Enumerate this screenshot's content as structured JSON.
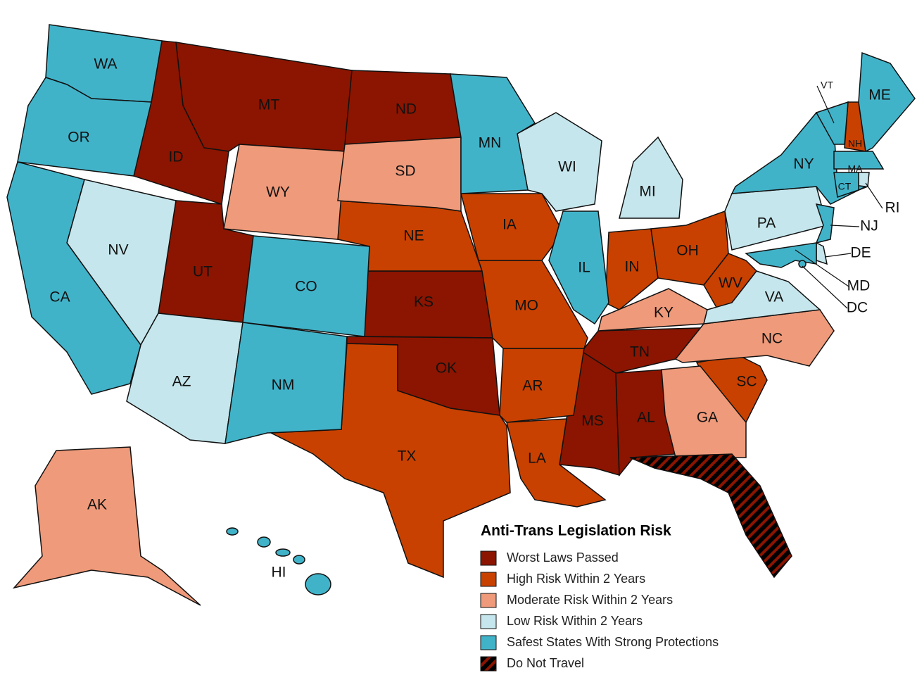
{
  "legend": {
    "title": "Anti-Trans Legislation Risk",
    "items": [
      {
        "label": "Worst Laws Passed",
        "color": "#8b1500",
        "states": [
          "MT",
          "ND",
          "ID",
          "UT",
          "KS",
          "OK",
          "TN",
          "MS",
          "AL"
        ]
      },
      {
        "label": "High Risk Within 2 Years",
        "color": "#c84100",
        "states": [
          "NE",
          "IA",
          "MO",
          "AR",
          "TX",
          "LA",
          "IN",
          "OH",
          "WV",
          "SC",
          "NH"
        ]
      },
      {
        "label": "Moderate Risk Within 2 Years",
        "color": "#ef9a7a",
        "states": [
          "WY",
          "SD",
          "KY",
          "NC",
          "GA",
          "AK"
        ]
      },
      {
        "label": "Low Risk Within 2 Years",
        "color": "#c5e6ec",
        "states": [
          "NV",
          "AZ",
          "WI",
          "MI",
          "PA",
          "VA",
          "DE",
          "RI"
        ]
      },
      {
        "label": "Safest States With Strong Protections",
        "color": "#41b3c9",
        "states": [
          "WA",
          "OR",
          "CA",
          "CO",
          "NM",
          "MN",
          "IL",
          "NY",
          "VT",
          "ME",
          "MA",
          "CT",
          "NJ",
          "MD",
          "DC",
          "HI"
        ]
      },
      {
        "label": "Do Not Travel",
        "color": "#000000",
        "stripe": "#8b1500"
      }
    ]
  }
}
